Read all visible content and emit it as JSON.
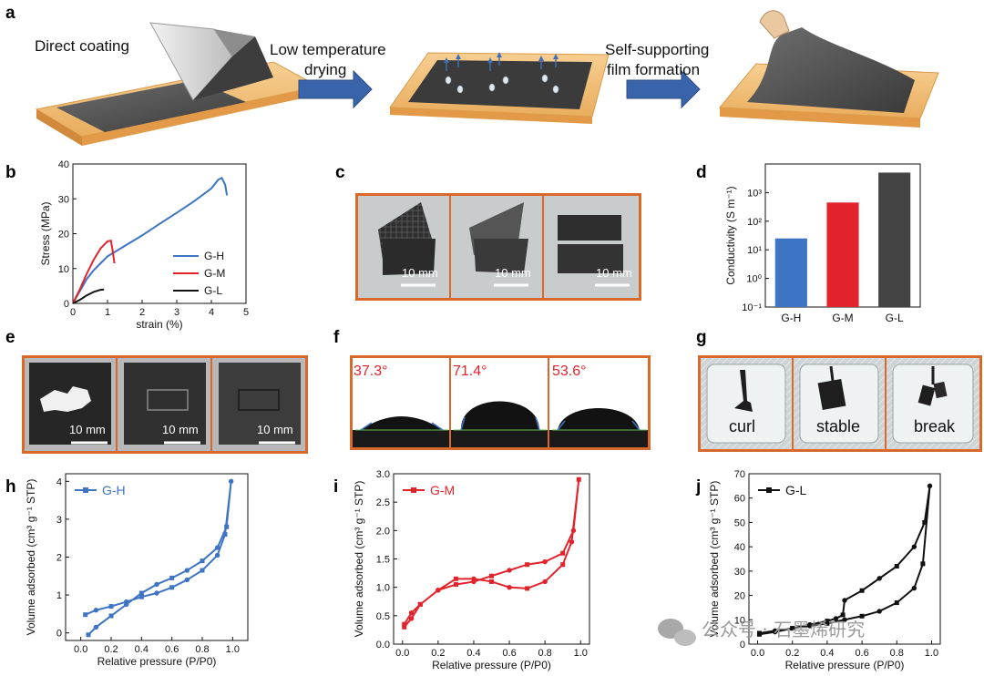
{
  "figure": {
    "panel_labels": {
      "a": "a",
      "b": "b",
      "c": "c",
      "d": "d",
      "e": "e",
      "f": "f",
      "g": "g",
      "h": "h",
      "i": "i",
      "j": "j"
    },
    "panel_a": {
      "step1": "Direct coating",
      "step2_line1": "Low temperature",
      "step2_line2": "drying",
      "step3_line1": "Self-supporting",
      "step3_line2": "film formation"
    },
    "panel_c": {
      "scale_labels": [
        "10 mm",
        "10 mm",
        "10 mm"
      ]
    },
    "panel_e": {
      "scale_labels": [
        "10 mm",
        "10 mm",
        "10 mm"
      ]
    },
    "panel_f": {
      "angles": [
        "37.3°",
        "71.4°",
        "53.6°"
      ]
    },
    "panel_g": {
      "labels": [
        "curl",
        "stable",
        "break"
      ]
    },
    "watermark": "公众号 · 石墨烯研究"
  },
  "colors": {
    "G-H": "#3d74c4",
    "G-M": "#e3232b",
    "G-L": "#111111",
    "frame": "#d9692a",
    "plate": "#f4c07a"
  },
  "chart_data": [
    {
      "id": "b",
      "type": "line",
      "xlabel": "strain (%)",
      "ylabel": "Stress (MPa)",
      "xlim": [
        0,
        5
      ],
      "ylim": [
        0,
        40
      ],
      "xticks": [
        0,
        1,
        2,
        3,
        4,
        5
      ],
      "yticks": [
        0,
        10,
        20,
        30,
        40
      ],
      "legend_position": "bottom-right",
      "series": [
        {
          "name": "G-H",
          "color": "#3d74c4",
          "x": [
            0,
            0.2,
            0.4,
            0.6,
            0.8,
            1.0,
            1.5,
            2.0,
            2.5,
            3.0,
            3.5,
            4.0,
            4.2,
            4.3,
            4.4,
            4.45
          ],
          "y": [
            0,
            3.5,
            7,
            9.5,
            11.5,
            13.5,
            16.5,
            19.5,
            22.8,
            26,
            29.3,
            33,
            35.5,
            36,
            34,
            31
          ]
        },
        {
          "name": "G-M",
          "color": "#e3232b",
          "x": [
            0,
            0.2,
            0.4,
            0.6,
            0.8,
            1.0,
            1.1,
            1.15,
            1.2
          ],
          "y": [
            0,
            4,
            8.5,
            12.5,
            15.8,
            17.8,
            18,
            15,
            11.5
          ]
        },
        {
          "name": "G-L",
          "color": "#111111",
          "x": [
            0,
            0.2,
            0.4,
            0.6,
            0.8,
            0.9
          ],
          "y": [
            0,
            1,
            2.3,
            3.3,
            3.9,
            4
          ]
        }
      ]
    },
    {
      "id": "d",
      "type": "bar",
      "ylabel": "Conductivity (S m⁻¹)",
      "yscale": "log",
      "ylim": [
        0.1,
        10000
      ],
      "yticks": [
        "10⁻¹",
        "10⁰",
        "10¹",
        "10²",
        "10³"
      ],
      "categories": [
        "G-H",
        "G-M",
        "G-L"
      ],
      "values": [
        25,
        450,
        5000
      ],
      "colors": [
        "#3d74c4",
        "#e3232b",
        "#444444"
      ]
    },
    {
      "id": "h",
      "type": "line",
      "xlabel": "Relative pressure (P/P0)",
      "ylabel": "Volume adsorbed (cm³ g⁻¹ STP)",
      "xlim": [
        -0.1,
        1.1
      ],
      "ylim": [
        -0.2,
        4.2
      ],
      "xticks": [
        0.0,
        0.2,
        0.4,
        0.6,
        0.8,
        1.0
      ],
      "yticks": [
        0,
        1,
        2,
        3,
        4
      ],
      "legend_position": "top-left",
      "series": [
        {
          "name": "G-H",
          "color": "#3d74c4",
          "marker": "square",
          "x": [
            0.03,
            0.1,
            0.2,
            0.3,
            0.4,
            0.5,
            0.6,
            0.7,
            0.8,
            0.9,
            0.95,
            0.99,
            0.96,
            0.9,
            0.8,
            0.7,
            0.6,
            0.5,
            0.4,
            0.3,
            0.2,
            0.1,
            0.05
          ],
          "y": [
            0.48,
            0.6,
            0.7,
            0.82,
            0.95,
            1.05,
            1.2,
            1.4,
            1.65,
            2.05,
            2.6,
            4.0,
            2.8,
            2.25,
            1.9,
            1.65,
            1.45,
            1.28,
            1.05,
            0.75,
            0.45,
            0.15,
            -0.05
          ]
        }
      ]
    },
    {
      "id": "i",
      "type": "line",
      "xlabel": "Relative pressure (P/P0)",
      "ylabel": "Volume adsorbed (cm³ g⁻¹ STP)",
      "xlim": [
        -0.05,
        1.05
      ],
      "ylim": [
        0,
        3.0
      ],
      "xticks": [
        0.0,
        0.2,
        0.4,
        0.6,
        0.8,
        1.0
      ],
      "yticks": [
        0.0,
        0.5,
        1.0,
        1.5,
        2.0,
        2.5,
        3.0
      ],
      "legend_position": "top-left",
      "series": [
        {
          "name": "G-M",
          "color": "#e3232b",
          "marker": "square",
          "x": [
            0.01,
            0.05,
            0.1,
            0.2,
            0.3,
            0.4,
            0.5,
            0.6,
            0.7,
            0.8,
            0.9,
            0.95,
            0.99,
            0.96,
            0.9,
            0.8,
            0.7,
            0.6,
            0.5,
            0.4,
            0.3,
            0.2,
            0.1,
            0.05,
            0.01
          ],
          "y": [
            0.35,
            0.55,
            0.7,
            0.95,
            1.15,
            1.15,
            1.1,
            1.0,
            0.98,
            1.1,
            1.4,
            1.8,
            2.9,
            2.0,
            1.6,
            1.45,
            1.4,
            1.3,
            1.2,
            1.1,
            1.05,
            0.95,
            0.7,
            0.45,
            0.3
          ]
        }
      ]
    },
    {
      "id": "j",
      "type": "line",
      "xlabel": "Relative pressure (P/P0)",
      "ylabel": "Volume adsorbed (cm³ g⁻¹ STP)",
      "xlim": [
        -0.05,
        1.05
      ],
      "ylim": [
        0,
        70
      ],
      "xticks": [
        0.0,
        0.2,
        0.4,
        0.6,
        0.8,
        1.0
      ],
      "yticks": [
        0,
        10,
        20,
        30,
        40,
        50,
        60,
        70
      ],
      "legend_position": "top-left",
      "series": [
        {
          "name": "G-L",
          "color": "#111111",
          "marker": "square",
          "x": [
            0.01,
            0.1,
            0.2,
            0.3,
            0.4,
            0.5,
            0.6,
            0.7,
            0.8,
            0.9,
            0.95,
            0.99,
            0.96,
            0.9,
            0.8,
            0.7,
            0.6,
            0.5,
            0.49,
            0.45,
            0.4,
            0.3,
            0.2,
            0.1,
            0.01
          ],
          "y": [
            4.5,
            5.5,
            6.5,
            7.5,
            8.5,
            10,
            11.5,
            13.5,
            17,
            23,
            33,
            65,
            50,
            40,
            32,
            27,
            22,
            18,
            12,
            10.5,
            9.5,
            8,
            6.5,
            5,
            4
          ]
        }
      ]
    }
  ]
}
